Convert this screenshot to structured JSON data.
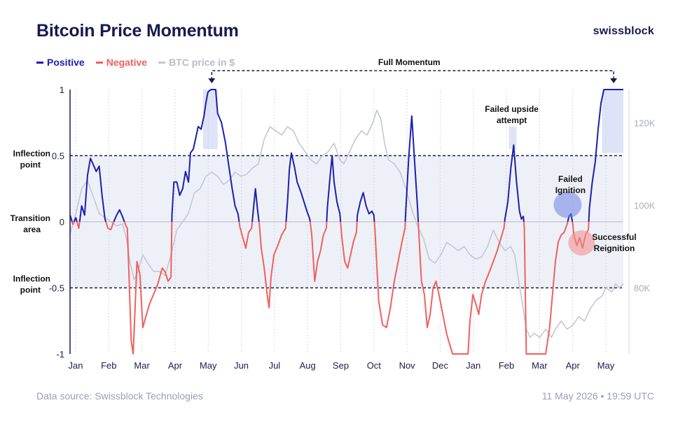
{
  "header": {
    "title": "Bitcoin Price Momentum",
    "brand": "swissblock"
  },
  "legend": [
    {
      "label": "Positive",
      "color": "#1b1fb0"
    },
    {
      "label": "Negative",
      "color": "#f0605d"
    },
    {
      "label": "BTC price in $",
      "color": "#c4c7d2"
    }
  ],
  "footer": {
    "source": "Data source: Swissblock Technologies",
    "timestamp": "11 May 2026 • 19:59 UTC"
  },
  "chart_data": {
    "type": "line",
    "title": "Bitcoin Price Momentum",
    "x_ticks": [
      "Jan",
      "Feb",
      "Mar",
      "Apr",
      "May",
      "Jun",
      "Jul",
      "Aug",
      "Sep",
      "Oct",
      "Nov",
      "Dec",
      "Jan",
      "Feb",
      "Mar",
      "Apr",
      "May"
    ],
    "y_left_ticks": [
      "1",
      "0.5",
      "0",
      "-0.5",
      "-1"
    ],
    "y_left_range": [
      -1,
      1
    ],
    "y_right_ticks": [
      "120K",
      "100K",
      "80K"
    ],
    "y_right_range": [
      64000,
      128000
    ],
    "side_labels": {
      "inflection_top": [
        "Inflection",
        "point"
      ],
      "transition": [
        "Transition",
        "area"
      ],
      "inflection_bottom": [
        "Inflection",
        "point"
      ]
    },
    "annotations": {
      "full_momentum": "Full Momentum",
      "failed_upside": [
        "Failed upside",
        "attempt"
      ],
      "failed_ignition": [
        "Failed",
        "Ignition"
      ],
      "successful_reignition": [
        "Successful",
        "Reignition"
      ]
    },
    "inflection_levels": [
      0.5,
      -0.5
    ],
    "momentum_series": {
      "name": "Momentum",
      "positive_color": "#1b1fb0",
      "negative_color": "#f0605d",
      "points": [
        [
          0,
          0.05
        ],
        [
          3,
          -0.02
        ],
        [
          6,
          0.03
        ],
        [
          9,
          -0.05
        ],
        [
          12,
          0.12
        ],
        [
          15,
          0.05
        ],
        [
          18,
          0.35
        ],
        [
          21,
          0.48
        ],
        [
          24,
          0.43
        ],
        [
          27,
          0.38
        ],
        [
          30,
          0.42
        ],
        [
          33,
          0.2
        ],
        [
          36,
          0.02
        ],
        [
          39,
          -0.05
        ],
        [
          42,
          -0.06
        ],
        [
          45,
          0.0
        ],
        [
          48,
          0.05
        ],
        [
          51,
          0.09
        ],
        [
          54,
          0.04
        ],
        [
          57,
          -0.02
        ],
        [
          59,
          -0.05
        ],
        [
          61,
          -0.45
        ],
        [
          63,
          -0.9
        ],
        [
          65,
          -1.0
        ],
        [
          67,
          -0.65
        ],
        [
          69,
          -0.3
        ],
        [
          72,
          -0.4
        ],
        [
          75,
          -0.8
        ],
        [
          78,
          -0.72
        ],
        [
          82,
          -0.62
        ],
        [
          86,
          -0.55
        ],
        [
          90,
          -0.48
        ],
        [
          95,
          -0.35
        ],
        [
          98,
          -0.38
        ],
        [
          101,
          -0.45
        ],
        [
          104,
          -0.42
        ],
        [
          105,
          0.05
        ],
        [
          107,
          0.3
        ],
        [
          110,
          0.3
        ],
        [
          113,
          0.2
        ],
        [
          116,
          0.25
        ],
        [
          119,
          0.38
        ],
        [
          122,
          0.3
        ],
        [
          124,
          0.52
        ],
        [
          127,
          0.55
        ],
        [
          130,
          0.65
        ],
        [
          132,
          0.72
        ],
        [
          135,
          0.7
        ],
        [
          138,
          0.8
        ],
        [
          140,
          0.9
        ],
        [
          142,
          0.98
        ],
        [
          145,
          1.0
        ],
        [
          150,
          1.0
        ],
        [
          152,
          0.82
        ],
        [
          156,
          0.75
        ],
        [
          160,
          0.6
        ],
        [
          163,
          0.45
        ],
        [
          167,
          0.25
        ],
        [
          170,
          0.12
        ],
        [
          173,
          0.06
        ],
        [
          175,
          -0.04
        ],
        [
          178,
          -0.12
        ],
        [
          181,
          -0.2
        ],
        [
          184,
          -0.08
        ],
        [
          187,
          -0.05
        ],
        [
          189,
          0.1
        ],
        [
          191,
          0.25
        ],
        [
          193,
          0.1
        ],
        [
          195,
          -0.02
        ],
        [
          197,
          -0.2
        ],
        [
          200,
          -0.35
        ],
        [
          203,
          -0.55
        ],
        [
          205,
          -0.65
        ],
        [
          207,
          -0.42
        ],
        [
          210,
          -0.25
        ],
        [
          214,
          -0.18
        ],
        [
          218,
          -0.1
        ],
        [
          222,
          -0.05
        ],
        [
          224,
          0.15
        ],
        [
          226,
          0.4
        ],
        [
          228,
          0.52
        ],
        [
          231,
          0.42
        ],
        [
          234,
          0.3
        ],
        [
          238,
          0.22
        ],
        [
          241,
          0.15
        ],
        [
          244,
          0.08
        ],
        [
          247,
          0.02
        ],
        [
          249,
          -0.1
        ],
        [
          252,
          -0.45
        ],
        [
          255,
          -0.3
        ],
        [
          258,
          -0.22
        ],
        [
          261,
          -0.1
        ],
        [
          264,
          -0.05
        ],
        [
          265,
          0.1
        ],
        [
          268,
          0.35
        ],
        [
          270,
          0.5
        ],
        [
          272,
          0.3
        ],
        [
          275,
          0.15
        ],
        [
          278,
          0.06
        ],
        [
          280,
          -0.12
        ],
        [
          283,
          -0.3
        ],
        [
          286,
          -0.35
        ],
        [
          289,
          -0.25
        ],
        [
          292,
          -0.15
        ],
        [
          295,
          -0.08
        ],
        [
          296,
          0.05
        ],
        [
          299,
          0.15
        ],
        [
          302,
          0.22
        ],
        [
          305,
          0.12
        ],
        [
          308,
          0.06
        ],
        [
          311,
          0.08
        ],
        [
          313,
          0.05
        ],
        [
          314,
          -0.05
        ],
        [
          318,
          -0.6
        ],
        [
          322,
          -0.78
        ],
        [
          326,
          -0.8
        ],
        [
          330,
          -0.65
        ],
        [
          334,
          -0.45
        ],
        [
          338,
          -0.3
        ],
        [
          342,
          -0.15
        ],
        [
          345,
          -0.05
        ],
        [
          346,
          0.1
        ],
        [
          349,
          0.5
        ],
        [
          352,
          0.8
        ],
        [
          355,
          0.45
        ],
        [
          358,
          0.1
        ],
        [
          359,
          -0.05
        ],
        [
          362,
          -0.45
        ],
        [
          365,
          -0.55
        ],
        [
          368,
          -0.8
        ],
        [
          371,
          -0.7
        ],
        [
          374,
          -0.5
        ],
        [
          377,
          -0.45
        ],
        [
          380,
          -0.55
        ],
        [
          384,
          -0.7
        ],
        [
          388,
          -0.85
        ],
        [
          392,
          -0.95
        ],
        [
          394,
          -1.0
        ],
        [
          400,
          -1.0
        ],
        [
          405,
          -1.0
        ],
        [
          410,
          -1.0
        ],
        [
          412,
          -0.75
        ],
        [
          415,
          -0.55
        ],
        [
          418,
          -0.62
        ],
        [
          421,
          -0.7
        ],
        [
          424,
          -0.55
        ],
        [
          428,
          -0.45
        ],
        [
          432,
          -0.38
        ],
        [
          436,
          -0.3
        ],
        [
          440,
          -0.22
        ],
        [
          444,
          -0.12
        ],
        [
          447,
          -0.05
        ],
        [
          448,
          0.02
        ],
        [
          451,
          0.15
        ],
        [
          454,
          0.4
        ],
        [
          457,
          0.58
        ],
        [
          460,
          0.3
        ],
        [
          463,
          0.08
        ],
        [
          465,
          0.02
        ],
        [
          467,
          0.04
        ],
        [
          468,
          -0.05
        ],
        [
          470,
          -1.0
        ],
        [
          480,
          -1.0
        ],
        [
          490,
          -1.0
        ],
        [
          494,
          -0.8
        ],
        [
          497,
          -0.55
        ],
        [
          500,
          -0.3
        ],
        [
          503,
          -0.15
        ],
        [
          506,
          -0.1
        ],
        [
          509,
          -0.08
        ],
        [
          512,
          -0.02
        ],
        [
          514,
          0.04
        ],
        [
          516,
          0.06
        ],
        [
          518,
          -0.02
        ],
        [
          519,
          -0.1
        ],
        [
          522,
          -0.18
        ],
        [
          525,
          -0.12
        ],
        [
          528,
          -0.2
        ],
        [
          531,
          -0.1
        ],
        [
          534,
          -0.06
        ],
        [
          535,
          0.1
        ],
        [
          538,
          0.3
        ],
        [
          541,
          0.45
        ],
        [
          544,
          0.7
        ],
        [
          547,
          0.9
        ],
        [
          550,
          1.0
        ],
        [
          560,
          1.0
        ],
        [
          570,
          1.0
        ]
      ]
    },
    "btc_series": {
      "name": "BTC price in $",
      "points": [
        [
          0,
          93000
        ],
        [
          6,
          98000
        ],
        [
          12,
          104000
        ],
        [
          18,
          106000
        ],
        [
          24,
          102000
        ],
        [
          30,
          98000
        ],
        [
          36,
          97000
        ],
        [
          42,
          96000
        ],
        [
          48,
          95000
        ],
        [
          54,
          95500
        ],
        [
          58,
          92000
        ],
        [
          62,
          86000
        ],
        [
          66,
          82000
        ],
        [
          70,
          84000
        ],
        [
          75,
          88000
        ],
        [
          80,
          86000
        ],
        [
          86,
          84000
        ],
        [
          92,
          84000
        ],
        [
          98,
          83000
        ],
        [
          104,
          88000
        ],
        [
          110,
          94000
        ],
        [
          116,
          96000
        ],
        [
          122,
          98000
        ],
        [
          128,
          103000
        ],
        [
          134,
          104000
        ],
        [
          140,
          107000
        ],
        [
          146,
          108000
        ],
        [
          152,
          107000
        ],
        [
          158,
          105000
        ],
        [
          164,
          106000
        ],
        [
          170,
          108000
        ],
        [
          176,
          107000
        ],
        [
          182,
          107500
        ],
        [
          188,
          109000
        ],
        [
          194,
          110000
        ],
        [
          200,
          116000
        ],
        [
          206,
          119000
        ],
        [
          212,
          118000
        ],
        [
          218,
          117000
        ],
        [
          224,
          119000
        ],
        [
          230,
          118000
        ],
        [
          236,
          115000
        ],
        [
          242,
          113000
        ],
        [
          248,
          111000
        ],
        [
          254,
          110000
        ],
        [
          260,
          112000
        ],
        [
          266,
          113000
        ],
        [
          272,
          115000
        ],
        [
          278,
          111000
        ],
        [
          282,
          110000
        ],
        [
          288,
          113000
        ],
        [
          294,
          116000
        ],
        [
          300,
          118000
        ],
        [
          306,
          117000
        ],
        [
          312,
          120000
        ],
        [
          316,
          123000
        ],
        [
          320,
          121000
        ],
        [
          324,
          115000
        ],
        [
          328,
          111000
        ],
        [
          334,
          110000
        ],
        [
          340,
          108000
        ],
        [
          346,
          104000
        ],
        [
          352,
          99000
        ],
        [
          358,
          95000
        ],
        [
          364,
          92000
        ],
        [
          370,
          87000
        ],
        [
          376,
          86000
        ],
        [
          382,
          88000
        ],
        [
          388,
          91000
        ],
        [
          394,
          90000
        ],
        [
          400,
          89000
        ],
        [
          406,
          90000
        ],
        [
          412,
          88000
        ],
        [
          418,
          87000
        ],
        [
          424,
          87500
        ],
        [
          430,
          90000
        ],
        [
          436,
          94000
        ],
        [
          442,
          91000
        ],
        [
          448,
          89000
        ],
        [
          454,
          90000
        ],
        [
          458,
          88000
        ],
        [
          462,
          82000
        ],
        [
          466,
          76000
        ],
        [
          470,
          70000
        ],
        [
          474,
          68000
        ],
        [
          478,
          69000
        ],
        [
          484,
          68000
        ],
        [
          490,
          70000
        ],
        [
          496,
          68000
        ],
        [
          500,
          70000
        ],
        [
          506,
          72000
        ],
        [
          512,
          70000
        ],
        [
          518,
          71000
        ],
        [
          524,
          73000
        ],
        [
          530,
          72000
        ],
        [
          536,
          75000
        ],
        [
          542,
          77000
        ],
        [
          548,
          78000
        ],
        [
          552,
          80000
        ],
        [
          558,
          79000
        ],
        [
          562,
          81000
        ],
        [
          566,
          80000
        ],
        [
          570,
          81000
        ]
      ]
    }
  }
}
